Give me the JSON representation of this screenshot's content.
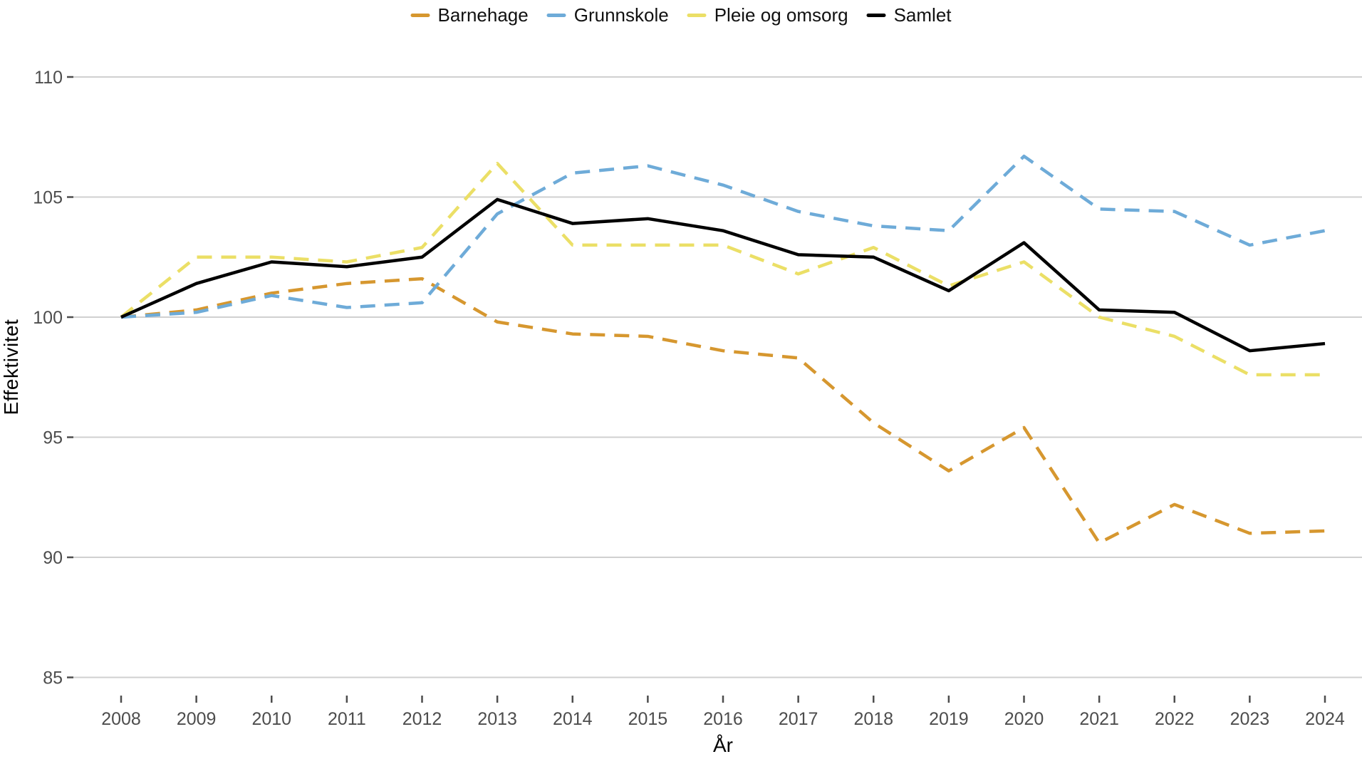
{
  "chart": {
    "y_axis_title": "Effektivitet",
    "x_axis_title": "År",
    "colors": {
      "grid": "#d0d0d0",
      "tick": "#4d4d4d",
      "tick_text": "#4d4d4d",
      "background": "#ffffff"
    }
  },
  "chart_data": {
    "type": "line",
    "title": "",
    "xlabel": "År",
    "ylabel": "Effektivitet",
    "x": [
      2008,
      2009,
      2010,
      2011,
      2012,
      2013,
      2014,
      2015,
      2016,
      2017,
      2018,
      2019,
      2020,
      2021,
      2022,
      2023,
      2024
    ],
    "y_ticks": [
      110,
      105,
      100,
      95,
      90,
      85
    ],
    "ylim": [
      85,
      110
    ],
    "grid": "horizontal",
    "legend_position": "top-center",
    "series": [
      {
        "name": "Barnehage",
        "color": "#d6972f",
        "dashed": true,
        "values": [
          100,
          100.3,
          101.0,
          101.4,
          101.6,
          99.8,
          99.3,
          99.2,
          98.6,
          98.3,
          95.6,
          93.6,
          95.4,
          90.6,
          92.2,
          91.0,
          91.1
        ]
      },
      {
        "name": "Grunnskole",
        "color": "#6eabd8",
        "dashed": true,
        "values": [
          100,
          100.2,
          100.9,
          100.4,
          100.6,
          104.3,
          106.0,
          106.3,
          105.5,
          104.4,
          103.8,
          103.6,
          106.7,
          104.5,
          104.4,
          103.0,
          103.6
        ]
      },
      {
        "name": "Pleie og omsorg",
        "color": "#ebdf66",
        "dashed": true,
        "values": [
          100,
          102.5,
          102.5,
          102.3,
          102.9,
          106.4,
          103.0,
          103.0,
          103.0,
          101.8,
          102.9,
          101.3,
          102.3,
          100.0,
          99.2,
          97.6,
          97.6
        ]
      },
      {
        "name": "Samlet",
        "color": "#000000",
        "dashed": false,
        "values": [
          100,
          101.4,
          102.3,
          102.1,
          102.5,
          104.9,
          103.9,
          104.1,
          103.6,
          102.6,
          102.5,
          101.1,
          103.1,
          100.3,
          100.2,
          98.6,
          98.9
        ]
      }
    ]
  }
}
